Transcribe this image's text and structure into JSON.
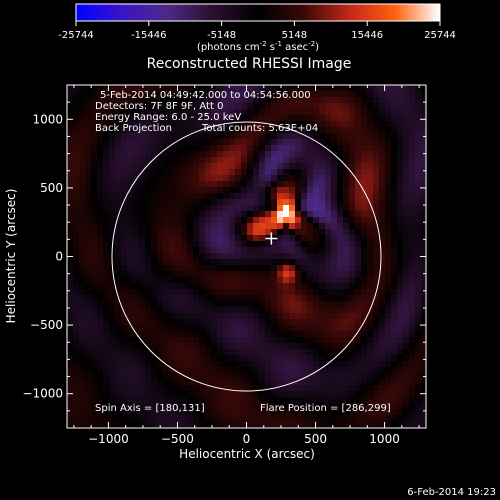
{
  "colorbar": {
    "ticks": [
      "-25744",
      "-15446",
      "-5148",
      "5148",
      "15446",
      "25744"
    ],
    "units_main": "(photons cm",
    "units_sup1": "-2",
    "units_mid1": " s",
    "units_sup2": "-1",
    "units_mid2": " asec",
    "units_sup3": "-2",
    "units_end": ")",
    "colors": [
      "#0000ff",
      "#3a14c8",
      "#4c2a86",
      "#2a1030",
      "#000000",
      "#3a0808",
      "#c0281a",
      "#ff6010",
      "#ffffff"
    ]
  },
  "title": "Reconstructed RHESSI Image",
  "info": {
    "time_range": "5-Feb-2014 04:49:42.000 to 04:54:56.000",
    "detectors": "Detectors: 7F 8F 9F, Att 0",
    "energy": "Energy Range: 6.0 - 25.0 keV",
    "method": "Back Projection",
    "counts": "Total counts: 5.63E+04",
    "spin_axis": "Spin Axis = [180,131]",
    "flare_position": "Flare Position = [286,299]"
  },
  "footer_timestamp": "6-Feb-2014 19:23",
  "chart_data": {
    "type": "heatmap",
    "title": "Reconstructed RHESSI Image",
    "xlabel": "Heliocentric X (arcsec)",
    "ylabel": "Heliocentric Y (arcsec)",
    "xlim": [
      -1300,
      1300
    ],
    "ylim": [
      -1250,
      1250
    ],
    "xticks": [
      -1000,
      -500,
      0,
      500,
      1000
    ],
    "yticks": [
      -1000,
      -500,
      0,
      500,
      1000
    ],
    "xtick_labels": [
      "−1000",
      "−500",
      "0",
      "500",
      "1000"
    ],
    "ytick_labels": [
      "−1000",
      "−500",
      "0",
      "500",
      "1000"
    ],
    "value_range": [
      -25744,
      25744
    ],
    "solar_limb_radius": 974,
    "spin_axis": [
      180,
      131
    ],
    "flare_position": [
      286,
      299
    ],
    "sources": [
      {
        "x": 290,
        "y": 310,
        "value": 25744
      },
      {
        "x": 300,
        "y": -110,
        "value": 15446
      },
      {
        "x": 180,
        "y": 460,
        "value": 9000
      },
      {
        "x": 60,
        "y": 180,
        "value": 6000
      }
    ]
  }
}
